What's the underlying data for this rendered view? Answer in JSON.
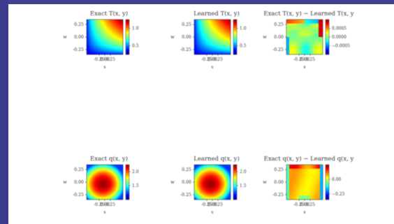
{
  "chart_data": [
    {
      "type": "heatmap",
      "title": "Exact T(x, y)",
      "xlabel": "x",
      "ylabel": "w",
      "xticks": [
        "-0.25",
        "0.00",
        "0.25"
      ],
      "yticks": [
        "0.25",
        "0.00",
        "-0.25"
      ],
      "colorbar_ticks": [
        {
          "label": "1.0",
          "value": 1.0
        },
        {
          "label": "0.5",
          "value": 0.5
        }
      ],
      "colorbar_range": [
        0.25,
        1.25
      ],
      "colormap": "jet",
      "field": "T"
    },
    {
      "type": "heatmap",
      "title": "Learned T(x, y)",
      "xlabel": "x",
      "ylabel": "w",
      "xticks": [
        "-0.25",
        "0.00",
        "0.25"
      ],
      "yticks": [
        "0.25",
        "0.00",
        "-0.25"
      ],
      "colorbar_ticks": [
        {
          "label": "1.0",
          "value": 1.0
        },
        {
          "label": "0.5",
          "value": 0.5
        }
      ],
      "colorbar_range": [
        0.25,
        1.25
      ],
      "colormap": "jet",
      "field": "T"
    },
    {
      "type": "heatmap",
      "title": "Exact T(x, y) − Learned T(x, y",
      "xlabel": "x",
      "ylabel": "w",
      "xticks": [
        "-0.25",
        "0.00",
        "0.25"
      ],
      "yticks": [
        "0.25",
        "0.00",
        "-0.25"
      ],
      "colorbar_ticks": [
        {
          "label": "0.0005",
          "value": 0.0005
        },
        {
          "label": "0.0000",
          "value": 0.0
        },
        {
          "label": "−0.0005",
          "value": -0.0005
        }
      ],
      "colorbar_range": [
        -0.001,
        0.001
      ],
      "colormap": "jet",
      "field": "Terr"
    },
    {
      "type": "heatmap",
      "title": "Exact q(x, y)",
      "xlabel": "x",
      "ylabel": "w",
      "xticks": [
        "-0.25",
        "0.00",
        "0.25"
      ],
      "yticks": [
        "0.25",
        "0.00",
        "-0.25"
      ],
      "colorbar_ticks": [
        {
          "label": "2.0",
          "value": 2.0
        },
        {
          "label": "1.5",
          "value": 1.5
        }
      ],
      "colorbar_range": [
        1.0,
        2.25
      ],
      "colormap": "jet",
      "field": "q"
    },
    {
      "type": "heatmap",
      "title": "Learned q(x, y)",
      "xlabel": "x",
      "ylabel": "w",
      "xticks": [
        "-0.25",
        "0.00",
        "0.25"
      ],
      "yticks": [
        "0.25",
        "0.00",
        "-0.25"
      ],
      "colorbar_ticks": [
        {
          "label": "2.0",
          "value": 2.0
        },
        {
          "label": "1.5",
          "value": 1.5
        }
      ],
      "colorbar_range": [
        1.0,
        2.25
      ],
      "colormap": "jet",
      "field": "q"
    },
    {
      "type": "heatmap",
      "title": "Exact q(x, y) − Learned q(x, y",
      "xlabel": "x",
      "ylabel": "w",
      "xticks": [
        "-0.25",
        "0.00",
        "0.25"
      ],
      "yticks": [
        "0.25",
        "0.00",
        "-0.25"
      ],
      "colorbar_ticks": [
        {
          "label": "0.00",
          "value": 0.0
        },
        {
          "label": "−0.25",
          "value": -0.25
        }
      ],
      "colorbar_range": [
        -0.35,
        0.25
      ],
      "colormap": "jet",
      "field": "qerr"
    }
  ],
  "colors": {
    "frame_background": "#3d3f8e",
    "figure_background": "#ffffff"
  }
}
